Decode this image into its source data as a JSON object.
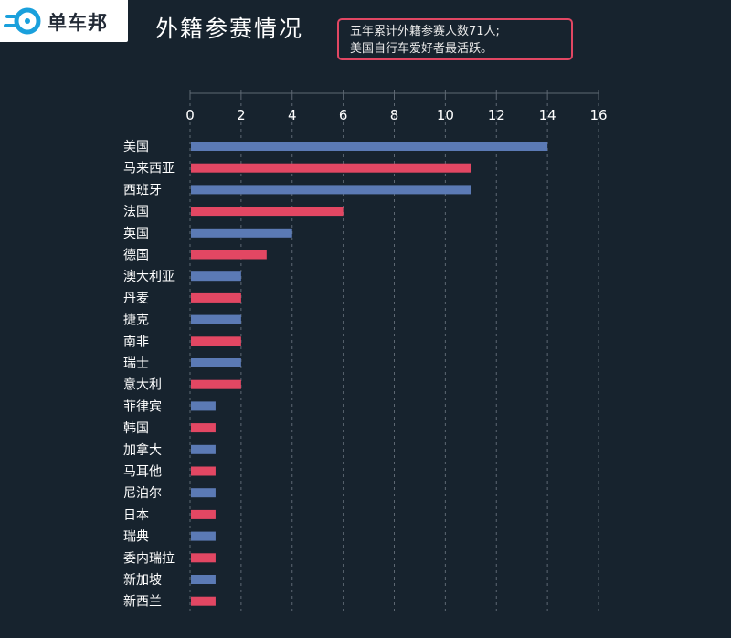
{
  "brand": {
    "logo_icon": "bike-wheel-logo-icon",
    "name": "单车邦"
  },
  "page_title": "外籍参赛情况",
  "callout": {
    "line1": "五年累计外籍参赛人数71人;",
    "line2": "美国自行车爱好者最活跃。"
  },
  "colors": {
    "background": "#17232e",
    "blue_bar": "#5b7ab5",
    "red_bar": "#e24763",
    "grid": "#5e6873"
  },
  "chart_data": {
    "type": "bar",
    "orientation": "horizontal",
    "title": "外籍参赛情况",
    "xlabel": "",
    "ylabel": "",
    "xlim": [
      0,
      16
    ],
    "x_ticks": [
      "0",
      "2",
      "4",
      "6",
      "8",
      "10",
      "12",
      "14",
      "16"
    ],
    "grid": "vertical dashed",
    "categories": [
      "美国",
      "马来西亚",
      "西班牙",
      "法国",
      "英国",
      "德国",
      "澳大利亚",
      "丹麦",
      "捷克",
      "南非",
      "瑞士",
      "意大利",
      "菲律宾",
      "韩国",
      "加拿大",
      "马耳他",
      "尼泊尔",
      "日本",
      "瑞典",
      "委内瑞拉",
      "新加坡",
      "新西兰"
    ],
    "values": [
      14,
      11,
      11,
      6,
      4,
      3,
      2,
      2,
      2,
      2,
      2,
      2,
      1,
      1,
      1,
      1,
      1,
      1,
      1,
      1,
      1,
      1
    ],
    "bar_colors": [
      "blue",
      "red",
      "blue",
      "red",
      "blue",
      "red",
      "blue",
      "red",
      "blue",
      "red",
      "blue",
      "red",
      "blue",
      "red",
      "blue",
      "red",
      "blue",
      "red",
      "blue",
      "red",
      "blue",
      "red"
    ]
  }
}
